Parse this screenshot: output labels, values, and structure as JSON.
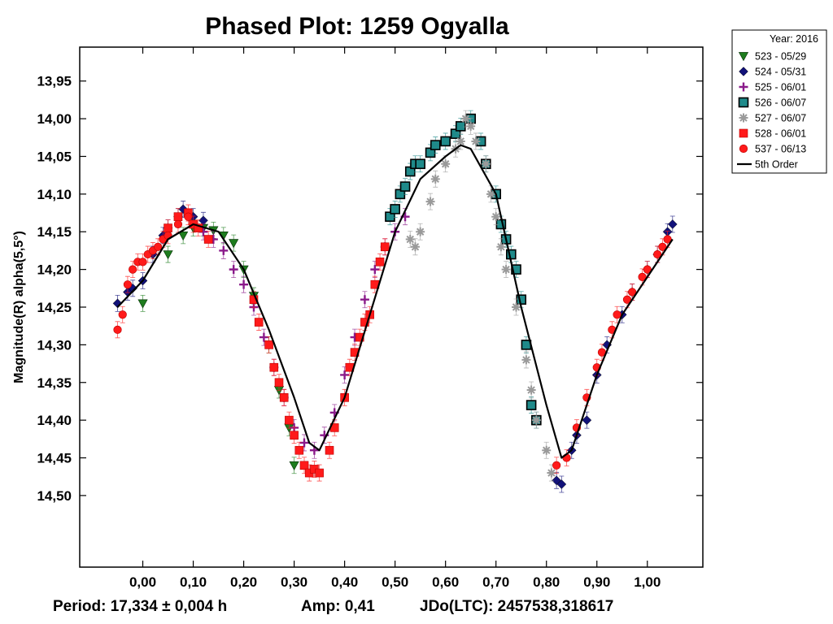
{
  "chart_data": {
    "type": "scatter",
    "title": "Phased Plot: 1259 Ogyalla",
    "xlabel": "",
    "ylabel": "Magnitude(R) alpha(5,5°)",
    "xlim": [
      -0.125,
      1.11
    ],
    "ylim": [
      14.595,
      13.905
    ],
    "x_ticks": [
      0.0,
      0.1,
      0.2,
      0.3,
      0.4,
      0.5,
      0.6,
      0.7,
      0.8,
      0.9,
      1.0
    ],
    "x_tick_labels": [
      "0,00",
      "0,10",
      "0,20",
      "0,30",
      "0,40",
      "0,50",
      "0,60",
      "0,70",
      "0,80",
      "0,90",
      "1,00"
    ],
    "y_ticks": [
      13.95,
      14.0,
      14.05,
      14.1,
      14.15,
      14.2,
      14.25,
      14.3,
      14.35,
      14.4,
      14.45,
      14.5
    ],
    "y_tick_labels": [
      "13,95",
      "14,00",
      "14,05",
      "14,10",
      "14,15",
      "14,20",
      "14,25",
      "14,30",
      "14,35",
      "14,40",
      "14,45",
      "14,50"
    ],
    "legend": {
      "header": "Year: 2016",
      "position": "outside-top-right",
      "entries": [
        {
          "label": "523 - 05/29",
          "marker": "triangle-down",
          "color": "#1e7d1e"
        },
        {
          "label": "524 - 05/31",
          "marker": "diamond",
          "color": "#12127a"
        },
        {
          "label": "525 - 06/01",
          "marker": "plus",
          "color": "#8a1a8a"
        },
        {
          "label": "526 - 06/07",
          "marker": "square-outlined",
          "color": "#1f8a8a"
        },
        {
          "label": "527 - 06/07",
          "marker": "asterisk",
          "color": "#9a9a9a"
        },
        {
          "label": "528 - 06/01",
          "marker": "square",
          "color": "#ff1a1a"
        },
        {
          "label": "537 - 06/13",
          "marker": "circle",
          "color": "#ff1a1a"
        },
        {
          "label": "5th Order",
          "marker": "line",
          "color": "#000000"
        }
      ]
    },
    "fit_curve": {
      "name": "5th Order",
      "x": [
        -0.05,
        0.0,
        0.05,
        0.1,
        0.15,
        0.2,
        0.25,
        0.3,
        0.33,
        0.35,
        0.4,
        0.45,
        0.5,
        0.55,
        0.6,
        0.63,
        0.65,
        0.7,
        0.75,
        0.8,
        0.83,
        0.85,
        0.9,
        0.95,
        1.0,
        1.05
      ],
      "y": [
        14.25,
        14.215,
        14.16,
        14.14,
        14.15,
        14.2,
        14.28,
        14.37,
        14.43,
        14.44,
        14.37,
        14.26,
        14.15,
        14.08,
        14.05,
        14.035,
        14.04,
        14.1,
        14.25,
        14.38,
        14.45,
        14.44,
        14.34,
        14.26,
        14.21,
        14.16
      ]
    },
    "series": [
      {
        "name": "523 - 05/29",
        "marker": "triangle-down",
        "color": "#1e7d1e",
        "x": [
          0.0,
          0.05,
          0.08,
          0.1,
          0.12,
          0.14,
          0.16,
          0.18,
          0.2,
          0.22,
          0.25,
          0.27,
          0.29,
          0.3
        ],
        "y": [
          14.245,
          14.18,
          14.155,
          14.145,
          14.145,
          14.148,
          14.155,
          14.165,
          14.2,
          14.235,
          14.3,
          14.36,
          14.41,
          14.46
        ]
      },
      {
        "name": "524 - 05/31",
        "marker": "diamond",
        "color": "#12127a",
        "x": [
          -0.05,
          -0.03,
          -0.02,
          0.0,
          0.02,
          0.04,
          0.05,
          0.07,
          0.08,
          0.1,
          0.12,
          0.82,
          0.83,
          0.85,
          0.86,
          0.88,
          0.9,
          0.92,
          0.95,
          0.97,
          1.0,
          1.02,
          1.04,
          1.05
        ],
        "y": [
          14.245,
          14.23,
          14.225,
          14.215,
          14.18,
          14.155,
          14.145,
          14.13,
          14.12,
          14.13,
          14.135,
          14.48,
          14.485,
          14.44,
          14.42,
          14.4,
          14.34,
          14.3,
          14.26,
          14.23,
          14.2,
          14.18,
          14.15,
          14.14
        ]
      },
      {
        "name": "525 - 06/01",
        "marker": "plus",
        "color": "#8a1a8a",
        "x": [
          0.12,
          0.14,
          0.16,
          0.18,
          0.2,
          0.22,
          0.24,
          0.26,
          0.28,
          0.3,
          0.32,
          0.34,
          0.36,
          0.38,
          0.4,
          0.42,
          0.44,
          0.46,
          0.48,
          0.5,
          0.52
        ],
        "y": [
          14.15,
          14.16,
          14.175,
          14.2,
          14.22,
          14.25,
          14.29,
          14.33,
          14.37,
          14.41,
          14.43,
          14.44,
          14.42,
          14.39,
          14.34,
          14.29,
          14.24,
          14.2,
          14.17,
          14.15,
          14.13
        ]
      },
      {
        "name": "526 - 06/07",
        "marker": "square-outlined",
        "color": "#1f8a8a",
        "x": [
          0.49,
          0.5,
          0.51,
          0.52,
          0.53,
          0.54,
          0.55,
          0.57,
          0.58,
          0.6,
          0.62,
          0.63,
          0.65,
          0.67,
          0.68,
          0.7,
          0.71,
          0.72,
          0.73,
          0.74,
          0.75,
          0.76,
          0.77,
          0.78
        ],
        "y": [
          14.13,
          14.12,
          14.1,
          14.09,
          14.07,
          14.06,
          14.06,
          14.045,
          14.035,
          14.03,
          14.02,
          14.01,
          14.0,
          14.03,
          14.06,
          14.1,
          14.14,
          14.16,
          14.18,
          14.2,
          14.24,
          14.3,
          14.38,
          14.4
        ]
      },
      {
        "name": "527 - 06/07",
        "marker": "asterisk",
        "color": "#9a9a9a",
        "x": [
          0.53,
          0.54,
          0.55,
          0.57,
          0.58,
          0.6,
          0.62,
          0.63,
          0.64,
          0.65,
          0.66,
          0.68,
          0.69,
          0.7,
          0.71,
          0.72,
          0.74,
          0.76,
          0.77,
          0.78,
          0.8,
          0.81
        ],
        "y": [
          14.16,
          14.17,
          14.15,
          14.11,
          14.08,
          14.06,
          14.04,
          14.03,
          14.0,
          14.01,
          14.03,
          14.06,
          14.1,
          14.13,
          14.17,
          14.2,
          14.25,
          14.32,
          14.36,
          14.4,
          14.44,
          14.47
        ]
      },
      {
        "name": "528 - 06/01",
        "marker": "square",
        "color": "#ff1a1a",
        "x": [
          0.05,
          0.07,
          0.09,
          0.1,
          0.11,
          0.13,
          0.22,
          0.23,
          0.25,
          0.26,
          0.27,
          0.28,
          0.29,
          0.3,
          0.31,
          0.32,
          0.33,
          0.34,
          0.35,
          0.37,
          0.38,
          0.4,
          0.41,
          0.42,
          0.43,
          0.44,
          0.45,
          0.46,
          0.47,
          0.48
        ],
        "y": [
          14.145,
          14.13,
          14.125,
          14.14,
          14.145,
          14.16,
          14.24,
          14.27,
          14.3,
          14.33,
          14.35,
          14.37,
          14.4,
          14.42,
          14.44,
          14.46,
          14.47,
          14.465,
          14.47,
          14.44,
          14.41,
          14.37,
          14.33,
          14.31,
          14.29,
          14.27,
          14.26,
          14.22,
          14.19,
          14.17
        ]
      },
      {
        "name": "537 - 06/13",
        "marker": "circle",
        "color": "#ff1a1a",
        "x": [
          -0.05,
          -0.04,
          -0.03,
          -0.02,
          -0.01,
          0.0,
          0.01,
          0.02,
          0.03,
          0.04,
          0.05,
          0.07,
          0.09,
          0.82,
          0.84,
          0.86,
          0.88,
          0.9,
          0.91,
          0.93,
          0.94,
          0.96,
          0.97,
          0.99,
          1.0,
          1.02,
          1.03,
          1.04
        ],
        "y": [
          14.28,
          14.26,
          14.22,
          14.2,
          14.19,
          14.19,
          14.18,
          14.175,
          14.17,
          14.16,
          14.155,
          14.14,
          14.13,
          14.46,
          14.45,
          14.41,
          14.37,
          14.33,
          14.31,
          14.28,
          14.26,
          14.24,
          14.23,
          14.21,
          14.2,
          14.18,
          14.17,
          14.16
        ]
      }
    ],
    "footer": {
      "period": "Period: 17,334 ± 0,004 h",
      "amp": "Amp: 0,41",
      "jdo": "JDo(LTC): 2457538,318617"
    }
  }
}
